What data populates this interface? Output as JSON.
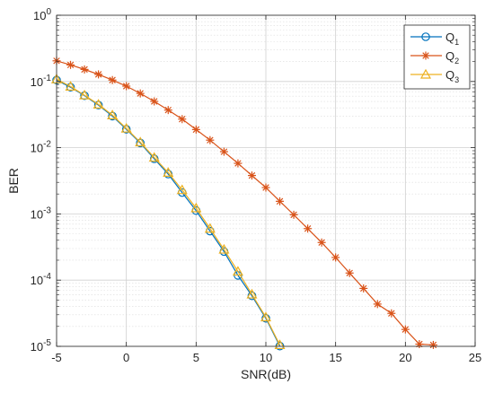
{
  "chart_data": {
    "type": "line",
    "title": "",
    "xlabel": "SNR(dB)",
    "ylabel": "BER",
    "xlim": [
      -5,
      25
    ],
    "ylim": [
      1e-05,
      1
    ],
    "yscale": "log",
    "grid": true,
    "minor_grid": true,
    "legend_position": "top-right",
    "xticks": [
      {
        "value": -5,
        "label": "-5"
      },
      {
        "value": 0,
        "label": "0"
      },
      {
        "value": 5,
        "label": "5"
      },
      {
        "value": 10,
        "label": "10"
      },
      {
        "value": 15,
        "label": "15"
      },
      {
        "value": 20,
        "label": "20"
      },
      {
        "value": 25,
        "label": "25"
      }
    ],
    "yticks": [
      {
        "value": 1e-05,
        "base": "10",
        "exp": "-5"
      },
      {
        "value": 0.0001,
        "base": "10",
        "exp": "-4"
      },
      {
        "value": 0.001,
        "base": "10",
        "exp": "-3"
      },
      {
        "value": 0.01,
        "base": "10",
        "exp": "-2"
      },
      {
        "value": 0.1,
        "base": "10",
        "exp": "-1"
      },
      {
        "value": 1,
        "base": "10",
        "exp": "0"
      }
    ],
    "series": [
      {
        "name": "Q",
        "subscript": "1",
        "color": "#0072BD",
        "marker": "circle",
        "x": [
          -5,
          -4,
          -3,
          -2,
          -1,
          0,
          1,
          2,
          3,
          4,
          5,
          6,
          7,
          8,
          9,
          10,
          11
        ],
        "y": [
          0.105,
          0.082,
          0.061,
          0.044,
          0.03,
          0.019,
          0.0118,
          0.0068,
          0.004,
          0.0021,
          0.00112,
          0.00055,
          0.00027,
          0.000118,
          5.8e-05,
          2.65e-05,
          1.01e-05
        ]
      },
      {
        "name": "Q",
        "subscript": "2",
        "color": "#D95319",
        "marker": "star",
        "x": [
          -5,
          -4,
          -3,
          -2,
          -1,
          0,
          1,
          2,
          3,
          4,
          5,
          6,
          7,
          8,
          9,
          10,
          11,
          12,
          13,
          14,
          15,
          16,
          17,
          18,
          19,
          20,
          21,
          22
        ],
        "y": [
          0.205,
          0.178,
          0.152,
          0.128,
          0.105,
          0.085,
          0.066,
          0.05,
          0.037,
          0.027,
          0.0188,
          0.013,
          0.0087,
          0.0058,
          0.0038,
          0.0025,
          0.00155,
          0.00097,
          0.0006,
          0.00037,
          0.00022,
          0.000128,
          7.5e-05,
          4.35e-05,
          3.15e-05,
          1.8e-05,
          1.08e-05,
          1.05e-05
        ]
      },
      {
        "name": "Q",
        "subscript": "3",
        "color": "#EDB120",
        "marker": "triangle",
        "x": [
          -5,
          -4,
          -3,
          -2,
          -1,
          0,
          1,
          2,
          3,
          4,
          5,
          6,
          7,
          8,
          9,
          10,
          11
        ],
        "y": [
          0.108,
          0.084,
          0.062,
          0.045,
          0.031,
          0.0195,
          0.0121,
          0.0071,
          0.0042,
          0.0023,
          0.00122,
          0.0006,
          0.00029,
          0.000135,
          6.1e-05,
          2.75e-05,
          1.05e-05
        ]
      }
    ]
  }
}
